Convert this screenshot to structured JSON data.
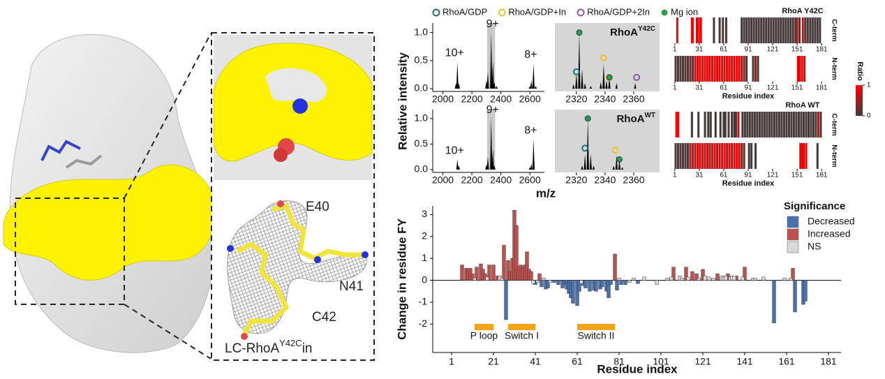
{
  "structure": {
    "labels": [
      "E40",
      "N41",
      "C42"
    ],
    "complex": {
      "prefix": "LC-RhoA",
      "sup": "Y42C",
      "suffix": "in"
    }
  },
  "chart_data": [
    {
      "type": "spectrum",
      "ylabel": "Relative intensity",
      "xlim": [
        1930,
        2700
      ],
      "xticks": [
        2000,
        2200,
        2400,
        2600
      ],
      "ylim": [
        0,
        1.12
      ],
      "yticks": [
        {
          "value": 0,
          "label": "0.0"
        },
        {
          "value": 0.5,
          "label": "0.5"
        },
        {
          "value": 1,
          "label": "1.0"
        }
      ],
      "highlight": [
        2305,
        2360
      ],
      "highlight_color": "#c8c8c8",
      "x": [
        2090,
        2100,
        2110,
        2300,
        2310,
        2333,
        2345,
        2355,
        2370,
        2600,
        2610,
        2625,
        2640
      ],
      "values": [
        0.1,
        0.48,
        0.1,
        0.15,
        0.3,
        1.0,
        0.5,
        0.12,
        0.05,
        0.05,
        0.15,
        0.45,
        0.05
      ],
      "annotations": [
        {
          "text": "10+",
          "x": 2100,
          "y": 0.48
        },
        {
          "text": "9+",
          "x": 2333,
          "y": 1.0
        },
        {
          "text": "8+",
          "x": 2625,
          "y": 0.45
        }
      ]
    },
    {
      "type": "spectrum",
      "title": {
        "text": "RhoA",
        "sup": "Y42C"
      },
      "background": "#d6d6d6",
      "xlim": [
        2305,
        2378
      ],
      "xticks": [
        2320,
        2340,
        2360
      ],
      "ylim": [
        0,
        1.12
      ],
      "x": [
        2318,
        2320,
        2322,
        2324,
        2326,
        2330,
        2337,
        2339,
        2341,
        2343,
        2348,
        2361
      ],
      "values": [
        0.08,
        0.28,
        1.0,
        0.35,
        0.1,
        0.05,
        0.12,
        0.45,
        0.15,
        0.2,
        0.1,
        0.1
      ],
      "series": [
        {
          "name": "RhoA/GDP",
          "color": "#1f6f7c",
          "marker": "ring",
          "x": [
            2320
          ],
          "values": [
            0.3
          ]
        },
        {
          "name": "RhoA/GDP+In",
          "color": "#f2c12e",
          "marker": "ring",
          "x": [
            2339,
            2343
          ],
          "values": [
            0.55,
            0.2
          ]
        },
        {
          "name": "RhoA/GDP+2In",
          "color": "#8e5aa8",
          "marker": "ring",
          "x": [
            2362
          ],
          "values": [
            0.2
          ]
        },
        {
          "name": "Mg ion",
          "color": "#2e9a4a",
          "marker": "dot",
          "x": [
            2322,
            2343
          ],
          "values": [
            1.0,
            0.2
          ]
        }
      ]
    },
    {
      "type": "spectrum",
      "xlabel": "m/z",
      "xlim": [
        1930,
        2700
      ],
      "xticks": [
        2000,
        2200,
        2400,
        2600
      ],
      "ylim": [
        0,
        1.12
      ],
      "yticks": [
        {
          "value": 0,
          "label": "0.0"
        },
        {
          "value": 0.5,
          "label": "0.5"
        },
        {
          "value": 1,
          "label": "1.0"
        }
      ],
      "highlight": [
        2305,
        2360
      ],
      "highlight_color": "#c8c8c8",
      "x": [
        2100,
        2110,
        2300,
        2310,
        2333,
        2345,
        2355,
        2600,
        2610,
        2625
      ],
      "values": [
        0.2,
        0.08,
        0.1,
        0.25,
        1.0,
        0.4,
        0.08,
        0.05,
        0.12,
        0.6
      ],
      "annotations": [
        {
          "text": "10+",
          "x": 2100,
          "y": 0.2
        },
        {
          "text": "9+",
          "x": 2333,
          "y": 1.0
        },
        {
          "text": "8+",
          "x": 2625,
          "y": 0.6
        }
      ]
    },
    {
      "type": "spectrum",
      "title": {
        "text": "RhoA",
        "sup": "WT"
      },
      "background": "#d6d6d6",
      "xlim": [
        2305,
        2378
      ],
      "xticks": [
        2320,
        2340,
        2360
      ],
      "ylim": [
        0,
        1.12
      ],
      "x": [
        2324,
        2326,
        2328,
        2330,
        2332,
        2346,
        2348,
        2350,
        2352
      ],
      "values": [
        0.08,
        0.3,
        1.0,
        0.3,
        0.08,
        0.08,
        0.28,
        0.2,
        0.05
      ],
      "series": [
        {
          "color": "#1f6f7c",
          "marker": "ring",
          "x": [
            2326
          ],
          "values": [
            0.42
          ]
        },
        {
          "color": "#f2c12e",
          "marker": "ring",
          "x": [
            2347
          ],
          "values": [
            0.38
          ]
        },
        {
          "color": "#2e9a4a",
          "marker": "dot",
          "x": [
            2328,
            2350
          ],
          "values": [
            1.0,
            0.2
          ]
        }
      ]
    },
    {
      "type": "heatmap",
      "title": "RhoA Y42C",
      "row_label": "C-term",
      "xlim": [
        -4,
        186
      ],
      "xticks": [
        1,
        31,
        61,
        91,
        121,
        151,
        181
      ],
      "x": [
        4,
        22,
        23,
        28,
        29,
        32,
        33,
        49,
        56,
        60,
        64,
        83,
        86,
        89,
        92,
        95,
        98,
        101,
        104,
        107,
        110,
        113,
        116,
        119,
        122,
        125,
        128,
        131,
        134,
        137,
        140,
        143,
        146,
        149,
        151,
        154,
        158,
        161,
        164,
        167,
        170,
        173,
        176,
        179
      ],
      "values": [
        1,
        0.9,
        1,
        0.8,
        1,
        0.9,
        1,
        0.1,
        0.1,
        0.1,
        0.1,
        0.05,
        0.05,
        0.05,
        0.05,
        0.05,
        0.05,
        0.05,
        0.05,
        0.05,
        0.05,
        0.05,
        0.05,
        0.05,
        0.05,
        0.05,
        0.05,
        0.05,
        0.05,
        0.05,
        0.05,
        0.05,
        0.05,
        0.05,
        0.7,
        0.05,
        0.8,
        0.05,
        0.05,
        0.05,
        0.05,
        0.05,
        0.05,
        0.05
      ]
    },
    {
      "type": "heatmap",
      "row_label": "N-term",
      "xlabel": "Residue index",
      "xlim": [
        -4,
        186
      ],
      "xticks": [
        1,
        31,
        61,
        91,
        121,
        151,
        181
      ],
      "x": [
        2,
        5,
        8,
        11,
        14,
        17,
        20,
        23,
        26,
        29,
        32,
        35,
        38,
        41,
        44,
        47,
        50,
        53,
        56,
        59,
        62,
        65,
        68,
        71,
        74,
        77,
        80,
        83,
        86,
        89,
        97,
        100,
        103,
        152,
        154,
        157,
        160
      ],
      "values": [
        0.05,
        0.1,
        0.05,
        0.1,
        0.05,
        0.3,
        0.05,
        0.4,
        0.6,
        0.9,
        0.8,
        1,
        0.9,
        1,
        0.7,
        0.9,
        1,
        0.8,
        0.9,
        1,
        0.6,
        0.9,
        1,
        0.8,
        0.7,
        1,
        0.9,
        0.6,
        0.5,
        0.05,
        0.05,
        0.7,
        0.05,
        0.9,
        0.8,
        1,
        0.7
      ]
    },
    {
      "type": "heatmap",
      "title": "RhoA WT",
      "row_label": "C-term",
      "xlim": [
        -4,
        186
      ],
      "x": [
        3,
        5,
        22,
        30,
        38,
        42,
        45,
        51,
        57,
        61,
        63,
        67,
        71,
        74,
        76,
        79,
        84,
        87,
        90,
        93,
        96,
        99,
        102,
        105,
        108,
        111,
        114,
        117,
        120,
        123,
        126,
        129,
        132,
        135,
        138,
        141,
        144,
        147,
        150,
        153,
        156,
        159,
        162,
        165,
        168,
        171,
        174,
        177,
        180
      ],
      "values": [
        1,
        0.9,
        0.05,
        0.05,
        0.05,
        0.05,
        0.05,
        0.05,
        0.05,
        0.05,
        0.05,
        0.05,
        0.05,
        0.05,
        0.05,
        0.8,
        0.05,
        0.05,
        0.05,
        0.05,
        0.05,
        0.05,
        0.05,
        0.05,
        0.05,
        0.05,
        0.05,
        0.05,
        0.05,
        0.05,
        0.05,
        0.05,
        0.05,
        0.05,
        0.05,
        0.05,
        0.05,
        0.05,
        0.05,
        0.05,
        0.05,
        0.05,
        0.05,
        0.05,
        0.05,
        0.05,
        0.05,
        0.9,
        0.05
      ]
    },
    {
      "type": "heatmap",
      "row_label": "N-term",
      "xlabel": "Residue index",
      "xlim": [
        -4,
        186
      ],
      "xticks": [
        1,
        31,
        61,
        91,
        121,
        151,
        181
      ],
      "x": [
        2,
        5,
        8,
        11,
        14,
        17,
        20,
        23,
        26,
        29,
        32,
        35,
        38,
        41,
        44,
        47,
        50,
        53,
        56,
        59,
        62,
        65,
        68,
        71,
        74,
        77,
        80,
        83,
        86,
        92,
        95,
        100,
        155,
        157,
        159,
        162,
        176
      ],
      "values": [
        0.05,
        0.1,
        0.05,
        0.2,
        0.05,
        0.05,
        0.6,
        0.8,
        0.5,
        0.9,
        0.7,
        1,
        0.6,
        0.8,
        0.4,
        0.9,
        1,
        0.5,
        0.8,
        0.7,
        1,
        0.6,
        0.9,
        0.5,
        0.8,
        1,
        0.7,
        0.4,
        0.3,
        0.05,
        0.05,
        0.05,
        0.9,
        1,
        0.8,
        0.9,
        0.05
      ]
    },
    {
      "type": "colorbar",
      "title": "Ratio",
      "ylim": [
        0,
        1
      ],
      "yticks": [
        0,
        1
      ],
      "colors": [
        "#3c3c3c",
        "#ff0000"
      ]
    },
    {
      "type": "bar",
      "ylabel": "Change in residue FY",
      "xlabel": "Residue index",
      "legend_title": "Significance",
      "xlim": [
        -8,
        187
      ],
      "xticks": [
        1,
        21,
        41,
        61,
        81,
        101,
        121,
        141,
        161,
        181
      ],
      "ylim": [
        -3.3,
        3.4
      ],
      "yticks": [
        -2,
        -1,
        0,
        1,
        2,
        3
      ],
      "series": [
        {
          "name": "Decreased",
          "color": "#4a72b0",
          "x": [
            27,
            41,
            44,
            46,
            47,
            50,
            52,
            54,
            55,
            56,
            57,
            58,
            59,
            61,
            62,
            64,
            65,
            67,
            69,
            70,
            72,
            73,
            75,
            76,
            77,
            80,
            82,
            84,
            90,
            155,
            165,
            169,
            170
          ],
          "values": [
            -1.8,
            -0.2,
            -0.3,
            -0.4,
            -0.35,
            -0.1,
            -0.2,
            -0.35,
            -0.2,
            -0.4,
            -0.6,
            -0.8,
            -1.05,
            -1.15,
            -0.5,
            -0.25,
            -0.35,
            -0.5,
            -0.45,
            -0.5,
            -0.4,
            -0.3,
            -0.5,
            -0.8,
            -0.2,
            -0.45,
            -0.2,
            -0.2,
            -0.15,
            -1.95,
            -1.45,
            -1.1,
            -0.95
          ]
        },
        {
          "name": "Increased",
          "color": "#c0504d",
          "x": [
            6,
            8,
            9,
            10,
            11,
            13,
            15,
            16,
            17,
            19,
            21,
            23,
            26,
            28,
            29,
            30,
            31,
            32,
            33,
            34,
            35,
            36,
            37,
            38,
            39,
            43,
            79,
            107,
            113,
            116,
            118,
            121,
            128,
            133,
            137,
            141,
            164
          ],
          "values": [
            0.7,
            0.55,
            0.5,
            0.55,
            0.3,
            0.6,
            0.75,
            0.5,
            0.3,
            0.7,
            0.7,
            0.2,
            1.6,
            0.9,
            0.4,
            1.0,
            3.2,
            2.5,
            0.6,
            0.7,
            0.6,
            0.7,
            1.3,
            0.5,
            0.4,
            0.3,
            1.2,
            0.6,
            0.6,
            0.4,
            0.3,
            0.5,
            0.3,
            0.3,
            0.2,
            0.6,
            0.55
          ]
        },
        {
          "name": "NS",
          "color": "#d9d9d9",
          "x": [
            12,
            18,
            24,
            25,
            40,
            42,
            45,
            48,
            63,
            81,
            86,
            88,
            93,
            99,
            104,
            106,
            110,
            111,
            114,
            119,
            122,
            124,
            126,
            130,
            131,
            132,
            134,
            135,
            136,
            140,
            145,
            146,
            150,
            160,
            163
          ],
          "values": [
            0.1,
            0.15,
            0.2,
            0.1,
            -0.15,
            -0.1,
            0.1,
            -0.1,
            -0.15,
            0.1,
            -0.1,
            0.1,
            0.15,
            -0.2,
            0.1,
            0.15,
            0.2,
            0.1,
            0.15,
            0.1,
            0.2,
            0.15,
            0.1,
            0.2,
            0.15,
            0.2,
            0.15,
            0.2,
            0.2,
            0.15,
            0.1,
            0.1,
            0.15,
            0.1,
            0.1
          ]
        }
      ],
      "region_color": "#f5a417",
      "regions": [
        {
          "label": "P loop",
          "range": [
            12,
            21
          ]
        },
        {
          "label": "Switch I",
          "range": [
            28,
            41
          ]
        },
        {
          "label": "Switch II",
          "range": [
            61,
            79
          ]
        }
      ]
    }
  ]
}
